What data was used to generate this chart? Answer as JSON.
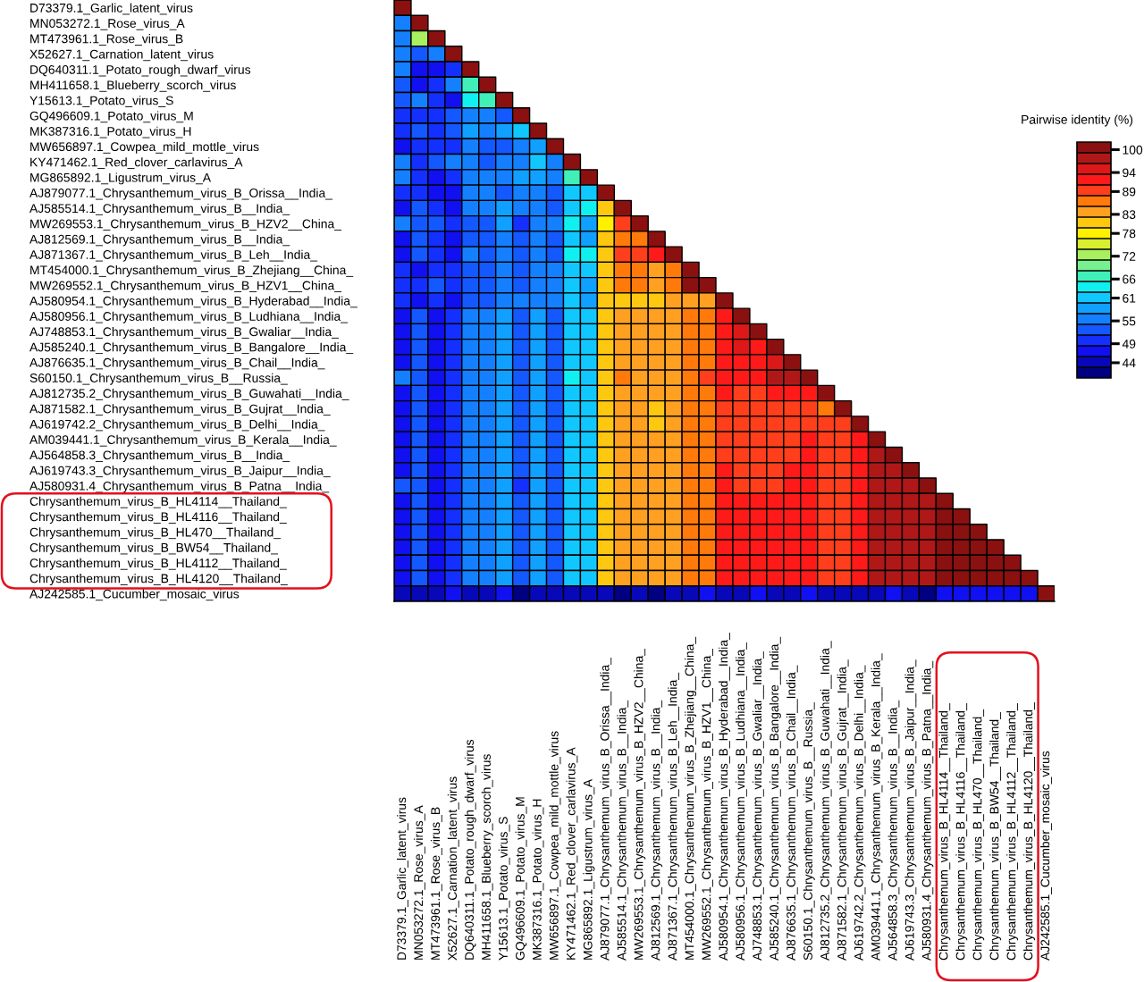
{
  "chart_data": {
    "type": "heatmap",
    "categories": [
      "D73379.1_Garlic_latent_virus",
      "MN053272.1_Rose_virus_A",
      "MT473961.1_Rose_virus_B",
      "X52627.1_Carnation_latent_virus",
      "DQ640311.1_Potato_rough_dwarf_virus",
      "MH411658.1_Blueberry_scorch_virus",
      "Y15613.1_Potato_virus_S",
      "GQ496609.1_Potato_virus_M",
      "MK387316.1_Potato_virus_H",
      "MW656897.1_Cowpea_mild_mottle_virus",
      "KY471462.1_Red_clover_carlavirus_A",
      "MG865892.1_Ligustrum_virus_A",
      "AJ879077.1_Chrysanthemum_virus_B_Orissa__India_",
      "AJ585514.1_Chrysanthemum_virus_B__India_",
      "MW269553.1_Chrysanthemum_virus_B_HZV2__China_",
      "AJ812569.1_Chrysanthemum_virus_B__India_",
      "AJ871367.1_Chrysanthemum_virus_B_Leh__India_",
      "MT454000.1_Chrysanthemum_virus_B_Zhejiang__China_",
      "MW269552.1_Chrysanthemum_virus_B_HZV1__China_",
      "AJ580954.1_Chrysanthemum_virus_B_Hyderabad__India_",
      "AJ580956.1_Chrysanthemum_virus_B_Ludhiana__India_",
      "AJ748853.1_Chrysanthemum_virus_B_Gwaliar__India_",
      "AJ585240.1_Chrysanthemum_virus_B_Bangalore__India_",
      "AJ876635.1_Chrysanthemum_virus_B_Chail__India_",
      "S60150.1_Chrysanthemum_virus_B__Russia_",
      "AJ812735.2_Chrysanthemum_virus_B_Guwahati__India_",
      "AJ871582.1_Chrysanthemum_virus_B_Gujrat__India_",
      "AJ619742.2_Chrysanthemum_virus_B_Delhi__India_",
      "AM039441.1_Chrysanthemum_virus_B_Kerala__India_",
      "AJ564858.3_Chrysanthemum_virus_B__India_",
      "AJ619743.3_Chrysanthemum_virus_B_Jaipur__India_",
      "AJ580931.4_Chrysanthemum_virus_B_Patna__India_",
      "Chrysanthemum_virus_B_HL4114__Thailand_",
      "Chrysanthemum_virus_B_HL4116__Thailand_",
      "Chrysanthemum_virus_B_HL470__Thailand_",
      "Chrysanthemum_virus_B_BW54__Thailand_",
      "Chrysanthemum_virus_B_HL4112__Thailand_",
      "Chrysanthemum_virus_B_HL4120__Thailand_",
      "AJ242585.1_Cucumber_mosaic_virus"
    ],
    "y_categories": [
      "D73379.1_Garlic_latent_virus",
      "MN053272.1_Rose_virus_A",
      "MT473961.1_Rose_virus_B",
      "X52627.1_Carnation_latent_virus",
      "DQ640311.1_Potato_rough_dwarf_virus",
      "MH411658.1_Blueberry_scorch_virus",
      "Y15613.1_Potato_virus_S",
      "GQ496609.1_Potato_virus_M",
      "MK387316.1_Potato_virus_H",
      "MW656897.1_Cowpea_mild_mottle_virus",
      "KY471462.1_Red_clover_carlavirus_A",
      "MG865892.1_Ligustrum_virus_A",
      "AJ879077.1_Chrysanthemum_virus_B_Orissa__India_",
      "AJ585514.1_Chrysanthemum_virus_B__India_",
      "MW269553.1_Chrysanthemum_virus_B_HZV2__China_",
      "AJ812569.1_Chrysanthemum_virus_B__India_",
      "AJ871367.1_Chrysanthemum_virus_B_Leh__India_",
      "MT454000.1_Chrysanthemum_virus_B_Zhejiang__China_",
      "MW269552.1_Chrysanthemum_virus_B_HZV1__China_",
      "AJ580954.1_Chrysanthemum_virus_B_Hyderabad__India_",
      "AJ580956.1_Chrysanthemum_virus_B_Ludhiana__India_",
      "AJ748853.1_Chrysanthemum_virus_B_Gwaliar__India_",
      "AJ585240.1_Chrysanthemum_virus_B_Bangalore__India_",
      "AJ876635.1_Chrysanthemum_virus_B_Chail__India_",
      "S60150.1_Chrysanthemum_virus_B__Russia_",
      "AJ812735.2_Chrysanthemum_virus_B_Guwahati__India_",
      "AJ871582.1_Chrysanthemum_virus_B_Gujrat__India_",
      "AJ619742.2_Chrysanthemum_virus_B_Delhi__India_",
      "AM039441.1_Chrysanthemum_virus_B_Kerala__India_",
      "AJ564858.3_Chrysanthemum_virus_B__India_",
      "AJ619743.3_Chrysanthemum_virus_B_Jaipur__India_",
      "AJ580931.4_Chrysanthemum_virus_B_Patna__India_",
      "Chrysanthemum_virus_B_HL4114__Thailand_",
      "Chrysanthemum_virus_B_HL4116__Thailand_",
      "Chrysanthemum_virus_B_HL470__Thailand_",
      "Chrysanthemum_virus_B_BW54__Thailand_",
      "Chrysanthemum_virus_B_HL4112__Thailand_",
      "Chrysanthemum_virus_B_HL4120__Thailand_",
      "AJ242585.1_Cucumber_mosaic_virus"
    ],
    "cells": [
      [
        100,
        null,
        null,
        null,
        null,
        null,
        null,
        null,
        null,
        null,
        null,
        null,
        null,
        null,
        null,
        null,
        null,
        null,
        null,
        null,
        null,
        null,
        null,
        null,
        null,
        null,
        null,
        null,
        null,
        null,
        null,
        null,
        null,
        null,
        null,
        null,
        null,
        null,
        null
      ],
      [
        55,
        100,
        null,
        null,
        null,
        null,
        null,
        null,
        null,
        null,
        null,
        null,
        null,
        null,
        null,
        null,
        null,
        null,
        null,
        null,
        null,
        null,
        null,
        null,
        null,
        null,
        null,
        null,
        null,
        null,
        null,
        null,
        null,
        null,
        null,
        null,
        null,
        null,
        null
      ],
      [
        55,
        72,
        100,
        null,
        null,
        null,
        null,
        null,
        null,
        null,
        null,
        null,
        null,
        null,
        null,
        null,
        null,
        null,
        null,
        null,
        null,
        null,
        null,
        null,
        null,
        null,
        null,
        null,
        null,
        null,
        null,
        null,
        null,
        null,
        null,
        null,
        null,
        null,
        null
      ],
      [
        55,
        52,
        55,
        100,
        null,
        null,
        null,
        null,
        null,
        null,
        null,
        null,
        null,
        null,
        null,
        null,
        null,
        null,
        null,
        null,
        null,
        null,
        null,
        null,
        null,
        null,
        null,
        null,
        null,
        null,
        null,
        null,
        null,
        null,
        null,
        null,
        null,
        null,
        null
      ],
      [
        55,
        47,
        47,
        50,
        100,
        null,
        null,
        null,
        null,
        null,
        null,
        null,
        null,
        null,
        null,
        null,
        null,
        null,
        null,
        null,
        null,
        null,
        null,
        null,
        null,
        null,
        null,
        null,
        null,
        null,
        null,
        null,
        null,
        null,
        null,
        null,
        null,
        null,
        null
      ],
      [
        52,
        47,
        50,
        55,
        67,
        100,
        null,
        null,
        null,
        null,
        null,
        null,
        null,
        null,
        null,
        null,
        null,
        null,
        null,
        null,
        null,
        null,
        null,
        null,
        null,
        null,
        null,
        null,
        null,
        null,
        null,
        null,
        null,
        null,
        null,
        null,
        null,
        null,
        null
      ],
      [
        52,
        55,
        50,
        47,
        64,
        67,
        100,
        null,
        null,
        null,
        null,
        null,
        null,
        null,
        null,
        null,
        null,
        null,
        null,
        null,
        null,
        null,
        null,
        null,
        null,
        null,
        null,
        null,
        null,
        null,
        null,
        null,
        null,
        null,
        null,
        null,
        null,
        null,
        null
      ],
      [
        50,
        50,
        50,
        52,
        55,
        55,
        52,
        100,
        null,
        null,
        null,
        null,
        null,
        null,
        null,
        null,
        null,
        null,
        null,
        null,
        null,
        null,
        null,
        null,
        null,
        null,
        null,
        null,
        null,
        null,
        null,
        null,
        null,
        null,
        null,
        null,
        null,
        null,
        null
      ],
      [
        50,
        52,
        50,
        52,
        58,
        55,
        58,
        61,
        100,
        null,
        null,
        null,
        null,
        null,
        null,
        null,
        null,
        null,
        null,
        null,
        null,
        null,
        null,
        null,
        null,
        null,
        null,
        null,
        null,
        null,
        null,
        null,
        null,
        null,
        null,
        null,
        null,
        null,
        null
      ],
      [
        47,
        50,
        50,
        50,
        55,
        52,
        52,
        55,
        58,
        100,
        null,
        null,
        null,
        null,
        null,
        null,
        null,
        null,
        null,
        null,
        null,
        null,
        null,
        null,
        null,
        null,
        null,
        null,
        null,
        null,
        null,
        null,
        null,
        null,
        null,
        null,
        null,
        null,
        null
      ],
      [
        55,
        50,
        52,
        55,
        55,
        52,
        55,
        55,
        61,
        55,
        100,
        null,
        null,
        null,
        null,
        null,
        null,
        null,
        null,
        null,
        null,
        null,
        null,
        null,
        null,
        null,
        null,
        null,
        null,
        null,
        null,
        null,
        null,
        null,
        null,
        null,
        null,
        null,
        null
      ],
      [
        55,
        50,
        47,
        50,
        55,
        55,
        55,
        58,
        58,
        55,
        67,
        100,
        null,
        null,
        null,
        null,
        null,
        null,
        null,
        null,
        null,
        null,
        null,
        null,
        null,
        null,
        null,
        null,
        null,
        null,
        null,
        null,
        null,
        null,
        null,
        null,
        null,
        null,
        null
      ],
      [
        50,
        50,
        47,
        47,
        55,
        55,
        52,
        55,
        55,
        52,
        61,
        61,
        100,
        null,
        null,
        null,
        null,
        null,
        null,
        null,
        null,
        null,
        null,
        null,
        null,
        null,
        null,
        null,
        null,
        null,
        null,
        null,
        null,
        null,
        null,
        null,
        null,
        null,
        null
      ],
      [
        47,
        52,
        50,
        47,
        55,
        55,
        58,
        55,
        55,
        52,
        61,
        64,
        81,
        100,
        null,
        null,
        null,
        null,
        null,
        null,
        null,
        null,
        null,
        null,
        null,
        null,
        null,
        null,
        null,
        null,
        null,
        null,
        null,
        null,
        null,
        null,
        null,
        null,
        null
      ],
      [
        55,
        52,
        52,
        50,
        52,
        52,
        58,
        50,
        55,
        55,
        64,
        58,
        78,
        89,
        100,
        null,
        null,
        null,
        null,
        null,
        null,
        null,
        null,
        null,
        null,
        null,
        null,
        null,
        null,
        null,
        null,
        null,
        null,
        null,
        null,
        null,
        null,
        null,
        null
      ],
      [
        47,
        52,
        50,
        47,
        52,
        52,
        55,
        52,
        55,
        52,
        61,
        58,
        81,
        86,
        86,
        100,
        null,
        null,
        null,
        null,
        null,
        null,
        null,
        null,
        null,
        null,
        null,
        null,
        null,
        null,
        null,
        null,
        null,
        null,
        null,
        null,
        null,
        null,
        null
      ],
      [
        47,
        52,
        50,
        47,
        55,
        52,
        55,
        52,
        55,
        52,
        64,
        64,
        81,
        89,
        89,
        92,
        100,
        null,
        null,
        null,
        null,
        null,
        null,
        null,
        null,
        null,
        null,
        null,
        null,
        null,
        null,
        null,
        null,
        null,
        null,
        null,
        null,
        null,
        null
      ],
      [
        50,
        47,
        50,
        50,
        52,
        52,
        55,
        52,
        55,
        55,
        61,
        61,
        81,
        86,
        86,
        84,
        86,
        100,
        null,
        null,
        null,
        null,
        null,
        null,
        null,
        null,
        null,
        null,
        null,
        null,
        null,
        null,
        null,
        null,
        null,
        null,
        null,
        null,
        null
      ],
      [
        50,
        50,
        52,
        50,
        52,
        52,
        55,
        52,
        55,
        55,
        61,
        58,
        81,
        86,
        86,
        84,
        86,
        100,
        100,
        null,
        null,
        null,
        null,
        null,
        null,
        null,
        null,
        null,
        null,
        null,
        null,
        null,
        null,
        null,
        null,
        null,
        null,
        null,
        null
      ],
      [
        50,
        47,
        50,
        47,
        52,
        52,
        55,
        55,
        55,
        55,
        61,
        58,
        81,
        81,
        81,
        81,
        84,
        84,
        84,
        100,
        null,
        null,
        null,
        null,
        null,
        null,
        null,
        null,
        null,
        null,
        null,
        null,
        null,
        null,
        null,
        null,
        null,
        null,
        null
      ],
      [
        47,
        52,
        47,
        50,
        55,
        55,
        58,
        52,
        58,
        52,
        61,
        61,
        81,
        84,
        84,
        84,
        84,
        86,
        86,
        92,
        100,
        null,
        null,
        null,
        null,
        null,
        null,
        null,
        null,
        null,
        null,
        null,
        null,
        null,
        null,
        null,
        null,
        null,
        null
      ],
      [
        47,
        52,
        47,
        50,
        55,
        55,
        58,
        52,
        58,
        52,
        61,
        61,
        81,
        84,
        84,
        84,
        84,
        86,
        86,
        92,
        95,
        100,
        null,
        null,
        null,
        null,
        null,
        null,
        null,
        null,
        null,
        null,
        null,
        null,
        null,
        null,
        null,
        null,
        null
      ],
      [
        47,
        52,
        47,
        50,
        55,
        55,
        58,
        52,
        58,
        52,
        61,
        61,
        81,
        84,
        84,
        84,
        84,
        86,
        86,
        92,
        95,
        92,
        100,
        null,
        null,
        null,
        null,
        null,
        null,
        null,
        null,
        null,
        null,
        null,
        null,
        null,
        null,
        null,
        null
      ],
      [
        47,
        52,
        47,
        50,
        55,
        55,
        58,
        52,
        58,
        52,
        61,
        61,
        81,
        84,
        84,
        84,
        84,
        86,
        86,
        92,
        92,
        92,
        95,
        100,
        null,
        null,
        null,
        null,
        null,
        null,
        null,
        null,
        null,
        null,
        null,
        null,
        null,
        null,
        null
      ],
      [
        55,
        52,
        47,
        50,
        55,
        55,
        58,
        52,
        58,
        52,
        64,
        61,
        81,
        86,
        84,
        84,
        84,
        86,
        89,
        92,
        92,
        92,
        98,
        98,
        100,
        null,
        null,
        null,
        null,
        null,
        null,
        null,
        null,
        null,
        null,
        null,
        null,
        null,
        null
      ],
      [
        47,
        52,
        47,
        50,
        55,
        55,
        58,
        52,
        58,
        52,
        61,
        61,
        81,
        84,
        84,
        84,
        84,
        86,
        86,
        92,
        89,
        89,
        92,
        92,
        92,
        100,
        null,
        null,
        null,
        null,
        null,
        null,
        null,
        null,
        null,
        null,
        null,
        null,
        null
      ],
      [
        47,
        52,
        47,
        50,
        55,
        55,
        58,
        52,
        58,
        52,
        61,
        61,
        81,
        84,
        84,
        81,
        84,
        86,
        86,
        89,
        89,
        89,
        89,
        89,
        89,
        86,
        100,
        null,
        null,
        null,
        null,
        null,
        null,
        null,
        null,
        null,
        null,
        null,
        null
      ],
      [
        47,
        52,
        47,
        50,
        55,
        55,
        58,
        52,
        58,
        52,
        61,
        61,
        81,
        84,
        84,
        81,
        84,
        86,
        86,
        89,
        89,
        89,
        89,
        89,
        89,
        89,
        89,
        100,
        null,
        null,
        null,
        null,
        null,
        null,
        null,
        null,
        null,
        null,
        null
      ],
      [
        47,
        52,
        47,
        50,
        55,
        55,
        58,
        52,
        58,
        52,
        61,
        61,
        81,
        84,
        84,
        84,
        84,
        86,
        86,
        89,
        89,
        89,
        89,
        89,
        92,
        89,
        89,
        92,
        100,
        null,
        null,
        null,
        null,
        null,
        null,
        null,
        null,
        null,
        null
      ],
      [
        47,
        52,
        47,
        50,
        55,
        55,
        58,
        52,
        58,
        52,
        61,
        61,
        81,
        84,
        84,
        84,
        84,
        86,
        86,
        89,
        89,
        89,
        89,
        89,
        92,
        89,
        89,
        92,
        98,
        100,
        null,
        null,
        null,
        null,
        null,
        null,
        null,
        null,
        null
      ],
      [
        47,
        52,
        47,
        50,
        55,
        55,
        58,
        52,
        58,
        52,
        61,
        61,
        81,
        84,
        84,
        84,
        84,
        86,
        86,
        92,
        89,
        89,
        89,
        92,
        92,
        89,
        89,
        92,
        98,
        98,
        100,
        null,
        null,
        null,
        null,
        null,
        null,
        null,
        null
      ],
      [
        52,
        52,
        47,
        50,
        55,
        55,
        58,
        50,
        58,
        52,
        61,
        61,
        81,
        84,
        84,
        84,
        84,
        86,
        86,
        92,
        89,
        89,
        89,
        92,
        92,
        89,
        89,
        92,
        98,
        98,
        98,
        100,
        null,
        null,
        null,
        null,
        null,
        null,
        null
      ],
      [
        47,
        52,
        47,
        50,
        55,
        55,
        58,
        52,
        58,
        52,
        61,
        61,
        81,
        84,
        84,
        84,
        84,
        86,
        86,
        92,
        92,
        92,
        92,
        92,
        92,
        89,
        89,
        92,
        98,
        98,
        98,
        98,
        100,
        null,
        null,
        null,
        null,
        null,
        null
      ],
      [
        47,
        52,
        47,
        50,
        55,
        55,
        58,
        52,
        58,
        52,
        61,
        61,
        81,
        84,
        84,
        84,
        84,
        86,
        86,
        92,
        92,
        92,
        92,
        92,
        92,
        89,
        89,
        92,
        98,
        98,
        98,
        98,
        100,
        100,
        null,
        null,
        null,
        null,
        null
      ],
      [
        47,
        52,
        47,
        50,
        55,
        55,
        58,
        52,
        58,
        52,
        61,
        61,
        81,
        84,
        84,
        84,
        84,
        86,
        86,
        92,
        92,
        92,
        92,
        92,
        92,
        89,
        89,
        92,
        98,
        98,
        98,
        98,
        100,
        100,
        100,
        null,
        null,
        null,
        null
      ],
      [
        47,
        52,
        47,
        50,
        55,
        55,
        58,
        52,
        58,
        52,
        61,
        61,
        81,
        84,
        84,
        84,
        84,
        86,
        86,
        92,
        92,
        92,
        92,
        92,
        92,
        89,
        89,
        92,
        98,
        98,
        98,
        98,
        100,
        100,
        100,
        100,
        null,
        null,
        null
      ],
      [
        47,
        52,
        47,
        50,
        55,
        55,
        58,
        52,
        58,
        52,
        61,
        61,
        81,
        84,
        84,
        84,
        84,
        86,
        86,
        92,
        92,
        92,
        92,
        92,
        92,
        89,
        89,
        92,
        98,
        98,
        98,
        98,
        100,
        100,
        100,
        100,
        100,
        null,
        null
      ],
      [
        47,
        52,
        47,
        50,
        55,
        55,
        58,
        52,
        58,
        52,
        61,
        61,
        81,
        84,
        84,
        84,
        84,
        86,
        86,
        92,
        92,
        92,
        92,
        92,
        92,
        89,
        89,
        92,
        98,
        98,
        98,
        98,
        100,
        100,
        100,
        100,
        100,
        100,
        null
      ],
      [
        44,
        44,
        44,
        47,
        44,
        44,
        47,
        41,
        44,
        44,
        44,
        44,
        44,
        41,
        44,
        41,
        44,
        44,
        47,
        44,
        44,
        47,
        44,
        44,
        47,
        44,
        44,
        44,
        44,
        47,
        44,
        41,
        47,
        47,
        47,
        47,
        47,
        47,
        100
      ]
    ],
    "clim": [
      40,
      102
    ],
    "cticks": [
      100,
      94,
      89,
      83,
      78,
      72,
      66,
      61,
      55,
      49,
      44
    ],
    "clabel": "Pairwise identity (%)"
  }
}
